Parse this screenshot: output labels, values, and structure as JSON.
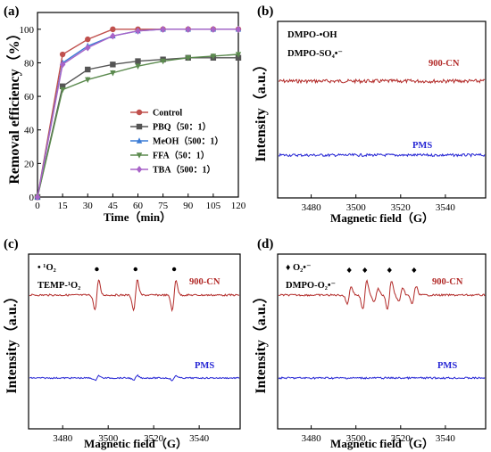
{
  "chart_data": [
    {
      "panel": "(a)",
      "type": "line",
      "xlabel": "Time（min）",
      "ylabel": "Removal efficiency（%）",
      "xlim": [
        0,
        120
      ],
      "ylim": [
        0,
        110
      ],
      "x_ticks": [
        "0",
        "15",
        "30",
        "45",
        "60",
        "75",
        "90",
        "105",
        "120"
      ],
      "y_ticks": [
        "0",
        "20",
        "40",
        "60",
        "80",
        "100"
      ],
      "x": [
        0,
        15,
        30,
        45,
        60,
        75,
        90,
        105,
        120
      ],
      "legend_position": "bottom-right",
      "series": [
        {
          "name": "Control",
          "color": "#c0504d",
          "marker": "circle",
          "values": [
            0,
            85,
            94,
            100,
            100,
            100,
            100,
            100,
            100
          ]
        },
        {
          "name": "PBQ（50：1）",
          "color": "#555555",
          "marker": "square",
          "values": [
            0,
            66,
            76,
            79,
            81,
            82,
            83,
            83,
            83
          ]
        },
        {
          "name": "MeOH（500：1）",
          "color": "#3a7bd5",
          "marker": "triangle",
          "values": [
            0,
            80,
            90,
            96,
            99,
            100,
            100,
            100,
            100
          ]
        },
        {
          "name": "FFA（50：1）",
          "color": "#5b8a4e",
          "marker": "triangle-down",
          "values": [
            0,
            64,
            70,
            74,
            78,
            81,
            83,
            84,
            85
          ]
        },
        {
          "name": "TBA（500：1）",
          "color": "#a864c8",
          "marker": "diamond",
          "values": [
            0,
            79,
            89,
            96,
            99,
            100,
            100,
            100,
            100
          ]
        }
      ]
    },
    {
      "panel": "(b)",
      "type": "line",
      "xlabel": "Magnetic field（G）",
      "ylabel": "Intensity（a.u.）",
      "xlim": [
        3465,
        3558
      ],
      "x_ticks": [
        "3480",
        "3500",
        "3520",
        "3540"
      ],
      "annotations": [
        "DMPO-•OH",
        "DMPO-SO₄•⁻"
      ],
      "series": [
        {
          "name": "900-CN",
          "color": "#b22a28",
          "signal": "flat"
        },
        {
          "name": "PMS",
          "color": "#2424d4",
          "signal": "flat"
        }
      ]
    },
    {
      "panel": "(c)",
      "type": "line",
      "xlabel": "Magnetic field（G）",
      "ylabel": "Intensity（a.u.）",
      "xlim": [
        3465,
        3558
      ],
      "x_ticks": [
        "3480",
        "3500",
        "3520",
        "3540"
      ],
      "annotations": [
        "• ¹O₂",
        "TEMP-¹O₂"
      ],
      "peak_positions": [
        3495,
        3512,
        3529
      ],
      "peak_amplitudes": [
        1.0,
        1.0,
        1.0
      ],
      "series": [
        {
          "name": "900-CN",
          "color": "#b22a28",
          "signal": "triplet"
        },
        {
          "name": "PMS",
          "color": "#2424d4",
          "signal": "weak-triplet"
        }
      ]
    },
    {
      "panel": "(d)",
      "type": "line",
      "xlabel": "Magnetic field（G）",
      "ylabel": "Intensity（a.u.）",
      "xlim": [
        3465,
        3558
      ],
      "x_ticks": [
        "3480",
        "3500",
        "3520",
        "3540"
      ],
      "annotations": [
        "♦ O₂•⁻",
        "DMPO-O₂•⁻"
      ],
      "peak_positions": [
        3497,
        3504,
        3509,
        3515,
        3520,
        3526
      ],
      "peak_amplitudes": [
        0.6,
        1.0,
        0.45,
        1.0,
        0.45,
        0.6
      ],
      "series": [
        {
          "name": "900-CN",
          "color": "#b22a28",
          "signal": "sextet"
        },
        {
          "name": "PMS",
          "color": "#2424d4",
          "signal": "flat"
        }
      ]
    }
  ]
}
